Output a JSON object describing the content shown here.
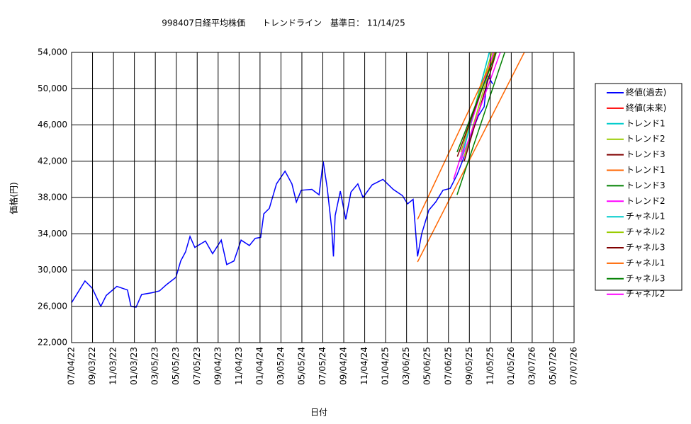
{
  "chart_data": {
    "type": "line",
    "title": "998407日経平均株価　　トレンドライン　基準日：  11/14/25",
    "x_label": "日付",
    "y_label": "価格(円)",
    "xlim": [
      "07/04/22",
      "07/07/26"
    ],
    "xticks": [
      "07/04/22",
      "09/03/22",
      "11/03/22",
      "01/03/23",
      "03/05/23",
      "05/05/23",
      "07/05/23",
      "09/04/23",
      "11/04/23",
      "01/04/24",
      "03/05/24",
      "05/05/24",
      "07/05/24",
      "09/04/24",
      "11/04/24",
      "01/04/25",
      "03/06/25",
      "05/06/25",
      "07/06/25",
      "09/05/25",
      "11/05/25",
      "01/05/26",
      "03/07/26",
      "05/07/26",
      "07/07/26"
    ],
    "ylim": [
      22000,
      54000
    ],
    "yticks": [
      {
        "value": 22000,
        "label": "22,000"
      },
      {
        "value": 26000,
        "label": "26,000"
      },
      {
        "value": 30000,
        "label": "30,000"
      },
      {
        "value": 34000,
        "label": "34,000"
      },
      {
        "value": 38000,
        "label": "38,000"
      },
      {
        "value": 42000,
        "label": "42,000"
      },
      {
        "value": 46000,
        "label": "46,000"
      },
      {
        "value": 50000,
        "label": "50,000"
      },
      {
        "value": 54000,
        "label": "54,000"
      }
    ],
    "grid": true,
    "legend": "right",
    "series": [
      {
        "name": "終値(過去)",
        "color": "#0000ff",
        "x": [
          "07/04/22",
          "08/12/22",
          "09/02/22",
          "09/27/22",
          "10/13/22",
          "11/13/22",
          "12/14/22",
          "12/24/22",
          "01/08/23",
          "01/24/23",
          "02/24/23",
          "03/17/23",
          "04/07/23",
          "05/04/23",
          "05/18/23",
          "06/01/23",
          "06/14/23",
          "06/28/23",
          "07/29/23",
          "08/19/23",
          "09/13/23",
          "09/29/23",
          "10/20/23",
          "11/10/23",
          "12/04/23",
          "12/21/23",
          "01/06/24",
          "01/15/24",
          "01/31/24",
          "02/21/24",
          "03/17/24",
          "04/06/24",
          "04/19/24",
          "05/03/24",
          "06/03/24",
          "06/24/24",
          "07/06/24",
          "07/18/24",
          "07/31/24",
          "08/05/24",
          "08/10/24",
          "08/25/24",
          "09/10/24",
          "09/25/24",
          "10/15/24",
          "10/30/24",
          "11/26/24",
          "12/27/24",
          "01/26/25",
          "02/22/25",
          "03/09/25",
          "03/25/25",
          "04/07/25",
          "04/19/25",
          "05/10/25",
          "05/30/25",
          "06/20/25",
          "07/11/25",
          "07/31/25",
          "08/21/25",
          "09/11/25",
          "10/01/25",
          "10/18/25",
          "10/28/25",
          "11/12/25"
        ],
        "values": [
          26400,
          28800,
          28000,
          26000,
          27200,
          28200,
          27800,
          26000,
          25900,
          27300,
          27500,
          27700,
          28400,
          29200,
          31000,
          32000,
          33700,
          32500,
          33200,
          31800,
          33300,
          30600,
          31000,
          33300,
          32700,
          33500,
          33600,
          36200,
          36800,
          39500,
          40900,
          39500,
          37500,
          38800,
          38900,
          38300,
          42000,
          39000,
          34500,
          31500,
          36000,
          38700,
          35600,
          38600,
          39500,
          38000,
          39400,
          40000,
          38900,
          38200,
          37300,
          37800,
          31500,
          34000,
          36600,
          37500,
          38800,
          39000,
          40500,
          42500,
          45000,
          47000,
          48000,
          51500,
          50500
        ]
      },
      {
        "name": "終値(未来)",
        "color": "#ff0000",
        "x": [],
        "values": []
      },
      {
        "name": "トレンド1",
        "color": "#00cccc",
        "x": [
          "08/11/25",
          "11/02/25"
        ],
        "values": [
          42000,
          54000
        ]
      },
      {
        "name": "トレンド2",
        "color": "#99cc00",
        "x": [
          "08/21/25",
          "11/17/25"
        ],
        "values": [
          42500,
          54000
        ]
      },
      {
        "name": "トレンド3",
        "color": "#800000",
        "x": [
          "08/21/25",
          "11/22/25"
        ],
        "values": [
          42000,
          54000
        ]
      },
      {
        "name": "トレンド1",
        "color": "#ff6600",
        "x": [
          "04/07/25",
          "02/12/26"
        ],
        "values": [
          30900,
          54000
        ]
      },
      {
        "name": "トレンド3",
        "color": "#008000",
        "x": [
          "07/31/25",
          "12/17/25"
        ],
        "values": [
          38300,
          54000
        ]
      },
      {
        "name": "トレンド2",
        "color": "#ff00ff",
        "x": [
          "07/21/25",
          "11/14/25"
        ],
        "values": [
          40000,
          54000
        ]
      },
      {
        "name": "チャネル1",
        "color": "#00cccc",
        "x": [
          "08/21/25",
          "11/02/25"
        ],
        "values": [
          43500,
          54000
        ]
      },
      {
        "name": "チャネル2",
        "color": "#99cc00",
        "x": [
          "08/11/25",
          "11/10/25"
        ],
        "values": [
          43000,
          54000
        ]
      },
      {
        "name": "チャネル3",
        "color": "#800000",
        "x": [
          "08/01/25",
          "11/20/25"
        ],
        "values": [
          42500,
          54000
        ]
      },
      {
        "name": "チャネル1",
        "color": "#ff6600",
        "x": [
          "04/07/25",
          "11/22/25"
        ],
        "values": [
          35600,
          54000
        ]
      },
      {
        "name": "チャネル3",
        "color": "#008000",
        "x": [
          "07/31/25",
          "11/22/25"
        ],
        "values": [
          43000,
          54000
        ]
      },
      {
        "name": "チャネル2",
        "color": "#ff00ff",
        "x": [
          "08/11/25",
          "12/04/25"
        ],
        "values": [
          42000,
          54000
        ]
      }
    ]
  }
}
